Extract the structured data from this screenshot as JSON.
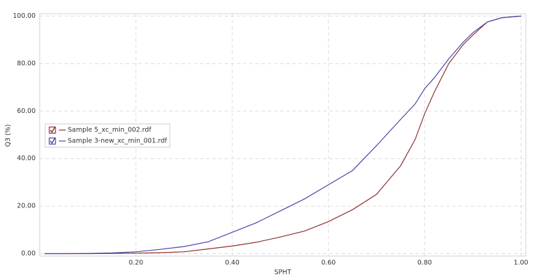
{
  "chart_data": {
    "type": "line",
    "x_label": "SPHT",
    "y_label": "Q3 (%)",
    "x": [
      0.01,
      0.05,
      0.1,
      0.15,
      0.2,
      0.25,
      0.3,
      0.35,
      0.4,
      0.45,
      0.5,
      0.55,
      0.6,
      0.65,
      0.7,
      0.75,
      0.78,
      0.8,
      0.82,
      0.85,
      0.88,
      0.9,
      0.93,
      0.96,
      1.0
    ],
    "series": [
      {
        "name": "Sample 5_xc_min_002.rdf",
        "color": "#8b2f2f",
        "values": [
          0,
          0,
          0,
          0.1,
          0.2,
          0.4,
          0.8,
          2,
          3.2,
          4.8,
          7,
          9.5,
          13.5,
          18.5,
          25,
          37,
          48,
          59,
          68,
          80,
          88,
          92,
          97.5,
          99.3,
          100
        ]
      },
      {
        "name": "Sample 3-new_xc_min_001.rdf",
        "color": "#4b43a8",
        "values": [
          0,
          0,
          0.1,
          0.3,
          0.8,
          1.8,
          3,
          5,
          9,
          13,
          18,
          23,
          29,
          35,
          45.5,
          56.5,
          63,
          69.5,
          74,
          82,
          89,
          93,
          97.5,
          99.3,
          100
        ]
      }
    ],
    "xlim": [
      0,
      1.01
    ],
    "ylim": [
      -1,
      101
    ],
    "xticks": [
      {
        "value": 0.2,
        "label": "0.20"
      },
      {
        "value": 0.4,
        "label": "0.40"
      },
      {
        "value": 0.6,
        "label": "0.60"
      },
      {
        "value": 0.8,
        "label": "0.80"
      },
      {
        "value": 1.0,
        "label": "1.00"
      }
    ],
    "yticks": [
      {
        "value": 0,
        "label": "0.00"
      },
      {
        "value": 20,
        "label": "20.00"
      },
      {
        "value": 40,
        "label": "40.00"
      },
      {
        "value": 60,
        "label": "60.00"
      },
      {
        "value": 80,
        "label": "80.00"
      },
      {
        "value": 100,
        "label": "100.00"
      }
    ],
    "grid": true,
    "legend": "left"
  }
}
